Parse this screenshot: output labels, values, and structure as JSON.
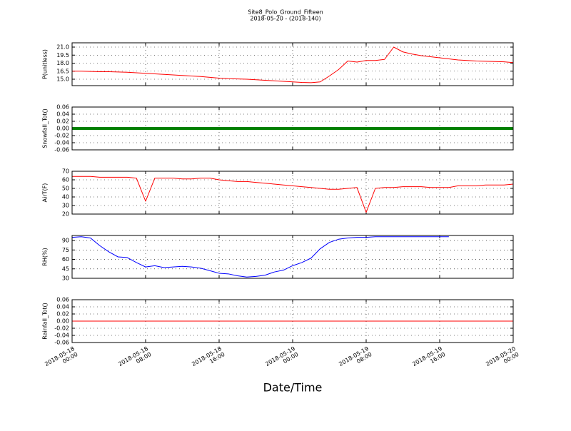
{
  "chart_data": [
    {
      "type": "line",
      "title": "Site8_Polo_Ground_Fifteen",
      "subtitle": "2018-05-20 - (2018-140)",
      "ylabel": "P(unitless)",
      "color": "#ff0000",
      "line_width": 1,
      "grid": true,
      "xlim": [
        "2018-05-18 00:00",
        "2018-05-20 00:00"
      ],
      "xticks": [
        "2018-05-18 00:00",
        "2018-05-18 08:00",
        "2018-05-18 16:00",
        "2018-05-19 00:00",
        "2018-05-19 08:00",
        "2018-05-19 16:00",
        "2018-05-20 00:00"
      ],
      "ylim": [
        13.8,
        21.8
      ],
      "yticks": [
        {
          "value": 15,
          "label": "15.0"
        },
        {
          "value": 16.5,
          "label": "16.5"
        },
        {
          "value": 18,
          "label": "18.0"
        },
        {
          "value": 19.5,
          "label": "19.5"
        },
        {
          "value": 21,
          "label": "21.0"
        }
      ],
      "x": [
        "2018-05-18 00:00",
        "2018-05-18 01:00",
        "2018-05-18 02:00",
        "2018-05-18 03:00",
        "2018-05-18 04:00",
        "2018-05-18 05:00",
        "2018-05-18 06:00",
        "2018-05-18 07:00",
        "2018-05-18 08:00",
        "2018-05-18 09:00",
        "2018-05-18 10:00",
        "2018-05-18 11:00",
        "2018-05-18 12:00",
        "2018-05-18 13:00",
        "2018-05-18 14:00",
        "2018-05-18 15:00",
        "2018-05-18 16:00",
        "2018-05-18 17:00",
        "2018-05-18 18:00",
        "2018-05-18 19:00",
        "2018-05-18 20:00",
        "2018-05-18 21:00",
        "2018-05-18 22:00",
        "2018-05-18 23:00",
        "2018-05-19 00:00",
        "2018-05-19 01:00",
        "2018-05-19 02:00",
        "2018-05-19 03:00",
        "2018-05-19 04:00",
        "2018-05-19 05:00",
        "2018-05-19 06:00",
        "2018-05-19 07:00",
        "2018-05-19 08:00",
        "2018-05-19 09:00",
        "2018-05-19 10:00",
        "2018-05-19 11:00",
        "2018-05-19 12:00",
        "2018-05-19 13:00",
        "2018-05-19 14:00",
        "2018-05-19 15:00",
        "2018-05-19 16:00",
        "2018-05-19 17:00",
        "2018-05-19 18:00",
        "2018-05-19 19:00",
        "2018-05-19 20:00",
        "2018-05-19 21:00",
        "2018-05-19 22:00",
        "2018-05-19 23:00",
        "2018-05-20 00:00"
      ],
      "values": [
        16.5,
        16.5,
        16.45,
        16.4,
        16.4,
        16.35,
        16.3,
        16.2,
        16.1,
        16.0,
        15.9,
        15.8,
        15.7,
        15.6,
        15.5,
        15.35,
        15.2,
        15.1,
        15.05,
        15.0,
        14.9,
        14.8,
        14.7,
        14.6,
        14.5,
        14.4,
        14.35,
        14.5,
        15.6,
        16.8,
        18.4,
        18.2,
        18.5,
        18.5,
        18.7,
        21.0,
        20.1,
        19.7,
        19.4,
        19.2,
        19.0,
        18.8,
        18.6,
        18.5,
        18.4,
        18.35,
        18.3,
        18.25,
        18.1
      ]
    },
    {
      "type": "line",
      "ylabel": "Snowfall_Tot()",
      "color": "#008000",
      "line_width": 4,
      "grid": true,
      "xlim": [
        "2018-05-18 00:00",
        "2018-05-20 00:00"
      ],
      "xticks": [
        "2018-05-18 00:00",
        "2018-05-18 08:00",
        "2018-05-18 16:00",
        "2018-05-19 00:00",
        "2018-05-19 08:00",
        "2018-05-19 16:00",
        "2018-05-20 00:00"
      ],
      "ylim": [
        -0.06,
        0.06
      ],
      "yticks": [
        {
          "value": -0.06,
          "label": "-0.06"
        },
        {
          "value": -0.04,
          "label": "-0.04"
        },
        {
          "value": -0.02,
          "label": "-0.02"
        },
        {
          "value": 0,
          "label": "0.00"
        },
        {
          "value": 0.02,
          "label": "0.02"
        },
        {
          "value": 0.04,
          "label": "0.04"
        },
        {
          "value": 0.06,
          "label": "0.06"
        }
      ],
      "x": [
        "2018-05-18 00:00",
        "2018-05-18 01:00",
        "2018-05-18 02:00",
        "2018-05-18 03:00",
        "2018-05-18 04:00",
        "2018-05-18 05:00",
        "2018-05-18 06:00",
        "2018-05-18 07:00",
        "2018-05-18 08:00",
        "2018-05-18 09:00",
        "2018-05-18 10:00",
        "2018-05-18 11:00",
        "2018-05-18 12:00",
        "2018-05-18 13:00",
        "2018-05-18 14:00",
        "2018-05-18 15:00",
        "2018-05-18 16:00",
        "2018-05-18 17:00",
        "2018-05-18 18:00",
        "2018-05-18 19:00",
        "2018-05-18 20:00",
        "2018-05-18 21:00",
        "2018-05-18 22:00",
        "2018-05-18 23:00",
        "2018-05-19 00:00",
        "2018-05-19 01:00",
        "2018-05-19 02:00",
        "2018-05-19 03:00",
        "2018-05-19 04:00",
        "2018-05-19 05:00",
        "2018-05-19 06:00",
        "2018-05-19 07:00",
        "2018-05-19 08:00",
        "2018-05-19 09:00",
        "2018-05-19 10:00",
        "2018-05-19 11:00",
        "2018-05-19 12:00",
        "2018-05-19 13:00",
        "2018-05-19 14:00",
        "2018-05-19 15:00",
        "2018-05-19 16:00",
        "2018-05-19 17:00",
        "2018-05-19 18:00",
        "2018-05-19 19:00",
        "2018-05-19 20:00",
        "2018-05-19 21:00",
        "2018-05-19 22:00",
        "2018-05-19 23:00",
        "2018-05-20 00:00"
      ],
      "values": [
        0,
        0,
        0,
        0,
        0,
        0,
        0,
        0,
        0,
        0,
        0,
        0,
        0,
        0,
        0,
        0,
        0,
        0,
        0,
        0,
        0,
        0,
        0,
        0,
        0,
        0,
        0,
        0,
        0,
        0,
        0,
        0,
        0,
        0,
        0,
        0,
        0,
        0,
        0,
        0,
        0,
        0,
        0,
        0,
        0,
        0,
        0,
        0,
        0
      ]
    },
    {
      "type": "line",
      "ylabel": "AirT(F)",
      "color": "#ff0000",
      "line_width": 1,
      "grid": true,
      "xlim": [
        "2018-05-18 00:00",
        "2018-05-20 00:00"
      ],
      "xticks": [
        "2018-05-18 00:00",
        "2018-05-18 08:00",
        "2018-05-18 16:00",
        "2018-05-19 00:00",
        "2018-05-19 08:00",
        "2018-05-19 16:00",
        "2018-05-20 00:00"
      ],
      "ylim": [
        20,
        70
      ],
      "yticks": [
        20,
        30,
        40,
        50,
        60,
        70
      ],
      "x": [
        "2018-05-18 00:00",
        "2018-05-18 01:00",
        "2018-05-18 02:00",
        "2018-05-18 03:00",
        "2018-05-18 04:00",
        "2018-05-18 05:00",
        "2018-05-18 06:00",
        "2018-05-18 07:00",
        "2018-05-18 08:00",
        "2018-05-18 09:00",
        "2018-05-18 10:00",
        "2018-05-18 11:00",
        "2018-05-18 12:00",
        "2018-05-18 13:00",
        "2018-05-18 14:00",
        "2018-05-18 15:00",
        "2018-05-18 16:00",
        "2018-05-18 17:00",
        "2018-05-18 18:00",
        "2018-05-18 19:00",
        "2018-05-18 20:00",
        "2018-05-18 21:00",
        "2018-05-18 22:00",
        "2018-05-18 23:00",
        "2018-05-19 00:00",
        "2018-05-19 01:00",
        "2018-05-19 02:00",
        "2018-05-19 03:00",
        "2018-05-19 04:00",
        "2018-05-19 05:00",
        "2018-05-19 06:00",
        "2018-05-19 07:00",
        "2018-05-19 08:00",
        "2018-05-19 09:00",
        "2018-05-19 10:00",
        "2018-05-19 11:00",
        "2018-05-19 12:00",
        "2018-05-19 13:00",
        "2018-05-19 14:00",
        "2018-05-19 15:00",
        "2018-05-19 16:00",
        "2018-05-19 17:00",
        "2018-05-19 18:00",
        "2018-05-19 19:00",
        "2018-05-19 20:00",
        "2018-05-19 21:00",
        "2018-05-19 22:00",
        "2018-05-19 23:00",
        "2018-05-20 00:00"
      ],
      "values": [
        64,
        64,
        64,
        63,
        63,
        63,
        63,
        62,
        35,
        62,
        62,
        62,
        61,
        61,
        62,
        62,
        60,
        59,
        58,
        58,
        57,
        56,
        55,
        54,
        53,
        52,
        51,
        50,
        49,
        49,
        50,
        51,
        22,
        50,
        51,
        51,
        52,
        52,
        52,
        51,
        51,
        51,
        53,
        53,
        53,
        54,
        54,
        54,
        55
      ]
    },
    {
      "type": "line",
      "ylabel": "RH(%)",
      "color": "#0000ff",
      "line_width": 1,
      "grid": true,
      "xlim": [
        "2018-05-18 00:00",
        "2018-05-20 00:00"
      ],
      "xticks": [
        "2018-05-18 00:00",
        "2018-05-18 08:00",
        "2018-05-18 16:00",
        "2018-05-19 00:00",
        "2018-05-19 08:00",
        "2018-05-19 16:00",
        "2018-05-20 00:00"
      ],
      "ylim": [
        30,
        98
      ],
      "yticks": [
        30,
        45,
        60,
        75,
        90
      ],
      "x": [
        "2018-05-18 00:00",
        "2018-05-18 01:00",
        "2018-05-18 02:00",
        "2018-05-18 03:00",
        "2018-05-18 04:00",
        "2018-05-18 05:00",
        "2018-05-18 06:00",
        "2018-05-18 07:00",
        "2018-05-18 08:00",
        "2018-05-18 09:00",
        "2018-05-18 10:00",
        "2018-05-18 11:00",
        "2018-05-18 12:00",
        "2018-05-18 13:00",
        "2018-05-18 14:00",
        "2018-05-18 15:00",
        "2018-05-18 16:00",
        "2018-05-18 17:00",
        "2018-05-18 18:00",
        "2018-05-18 19:00",
        "2018-05-18 20:00",
        "2018-05-18 21:00",
        "2018-05-18 22:00",
        "2018-05-18 23:00",
        "2018-05-19 00:00",
        "2018-05-19 01:00",
        "2018-05-19 02:00",
        "2018-05-19 03:00",
        "2018-05-19 04:00",
        "2018-05-19 05:00",
        "2018-05-19 06:00",
        "2018-05-19 07:00",
        "2018-05-19 08:00",
        "2018-05-19 09:00",
        "2018-05-19 10:00",
        "2018-05-19 11:00",
        "2018-05-19 12:00",
        "2018-05-19 13:00",
        "2018-05-19 14:00",
        "2018-05-19 15:00",
        "2018-05-19 16:00",
        "2018-05-19 17:00",
        "2018-05-19 18:00",
        "2018-05-19 19:00",
        "2018-05-19 20:00",
        "2018-05-19 21:00",
        "2018-05-19 22:00",
        "2018-05-19 23:00",
        "2018-05-20 00:00"
      ],
      "values": [
        95,
        96,
        94,
        82,
        72,
        64,
        63,
        55,
        48,
        50,
        47,
        48,
        49,
        48,
        46,
        42,
        38,
        37,
        34,
        32,
        33,
        35,
        40,
        43,
        50,
        55,
        62,
        77,
        87,
        92,
        94,
        95,
        95,
        96,
        96,
        96,
        96,
        96,
        96,
        96,
        96,
        96,
        null,
        null,
        null,
        null,
        null,
        null,
        null
      ]
    },
    {
      "type": "line",
      "ylabel": "Rainfall_Tot()",
      "xlabel": "Date/Time",
      "color": "#ff0000",
      "line_width": 1,
      "grid": true,
      "show_xtick_labels": true,
      "xlim": [
        "2018-05-18 00:00",
        "2018-05-20 00:00"
      ],
      "xticks": [
        "2018-05-18 00:00",
        "2018-05-18 08:00",
        "2018-05-18 16:00",
        "2018-05-19 00:00",
        "2018-05-19 08:00",
        "2018-05-19 16:00",
        "2018-05-20 00:00"
      ],
      "ylim": [
        -0.06,
        0.06
      ],
      "yticks": [
        {
          "value": -0.06,
          "label": "-0.06"
        },
        {
          "value": -0.04,
          "label": "-0.04"
        },
        {
          "value": -0.02,
          "label": "-0.02"
        },
        {
          "value": 0,
          "label": "0.00"
        },
        {
          "value": 0.02,
          "label": "0.02"
        },
        {
          "value": 0.04,
          "label": "0.04"
        },
        {
          "value": 0.06,
          "label": "0.06"
        }
      ],
      "x": [
        "2018-05-18 00:00",
        "2018-05-18 01:00",
        "2018-05-18 02:00",
        "2018-05-18 03:00",
        "2018-05-18 04:00",
        "2018-05-18 05:00",
        "2018-05-18 06:00",
        "2018-05-18 07:00",
        "2018-05-18 08:00",
        "2018-05-18 09:00",
        "2018-05-18 10:00",
        "2018-05-18 11:00",
        "2018-05-18 12:00",
        "2018-05-18 13:00",
        "2018-05-18 14:00",
        "2018-05-18 15:00",
        "2018-05-18 16:00",
        "2018-05-18 17:00",
        "2018-05-18 18:00",
        "2018-05-18 19:00",
        "2018-05-18 20:00",
        "2018-05-18 21:00",
        "2018-05-18 22:00",
        "2018-05-18 23:00",
        "2018-05-19 00:00",
        "2018-05-19 01:00",
        "2018-05-19 02:00",
        "2018-05-19 03:00",
        "2018-05-19 04:00",
        "2018-05-19 05:00",
        "2018-05-19 06:00",
        "2018-05-19 07:00",
        "2018-05-19 08:00",
        "2018-05-19 09:00",
        "2018-05-19 10:00",
        "2018-05-19 11:00",
        "2018-05-19 12:00",
        "2018-05-19 13:00",
        "2018-05-19 14:00",
        "2018-05-19 15:00",
        "2018-05-19 16:00",
        "2018-05-19 17:00",
        "2018-05-19 18:00",
        "2018-05-19 19:00",
        "2018-05-19 20:00",
        "2018-05-19 21:00",
        "2018-05-19 22:00",
        "2018-05-19 23:00",
        "2018-05-20 00:00"
      ],
      "values": [
        0,
        0,
        0,
        0,
        0,
        0,
        0,
        0,
        0,
        0,
        0,
        0,
        0,
        0,
        0,
        0,
        0,
        0,
        0,
        0,
        0,
        0,
        0,
        0,
        0,
        0,
        0,
        0,
        0,
        0,
        0,
        0,
        0,
        0,
        0,
        0,
        0,
        0,
        0,
        0,
        0,
        0,
        0,
        0,
        0,
        0,
        0,
        0,
        0
      ]
    }
  ]
}
